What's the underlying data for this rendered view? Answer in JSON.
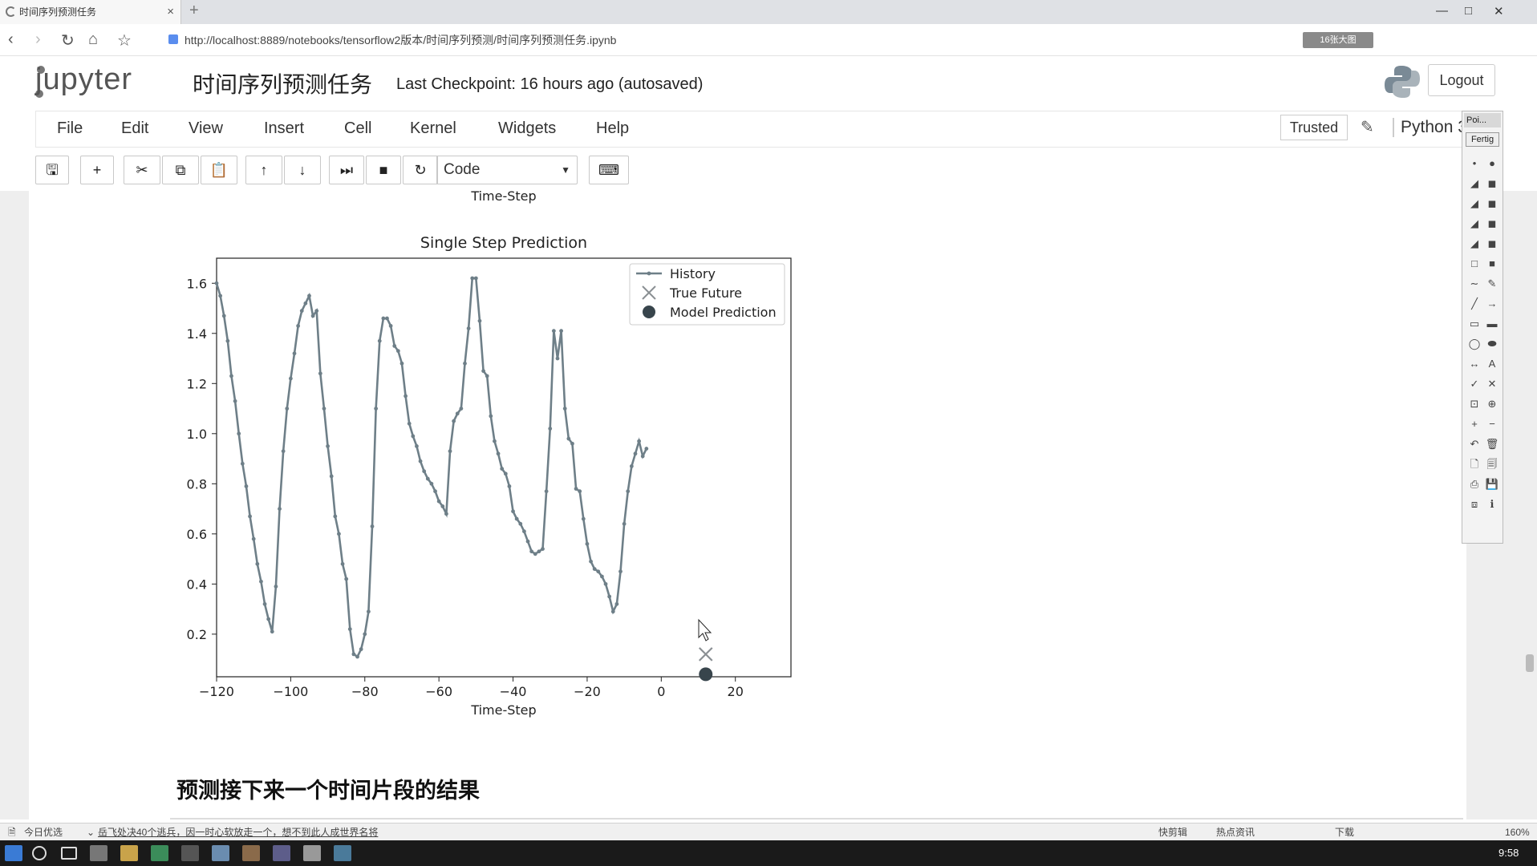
{
  "browser": {
    "tab_title": "时间序列预测任务",
    "tab_close": "×",
    "new_tab": "+",
    "url": "http://localhost:8889/notebooks/tensorflow2版本/时间序列预测/时间序列预测任务.ipynb",
    "badge": "16张大图",
    "nav": {
      "back": "‹",
      "forward": "›",
      "reload": "↻",
      "home": "⌂",
      "star": "☆"
    },
    "window": {
      "minimize": "—",
      "maximize": "□",
      "close": "✕"
    }
  },
  "header": {
    "logo": "jupyter",
    "notebook_name": "时间序列预测任务",
    "checkpoint": "Last Checkpoint: 16 hours ago (autosaved)",
    "logout": "Logout"
  },
  "menubar": {
    "items": [
      "File",
      "Edit",
      "View",
      "Insert",
      "Cell",
      "Kernel",
      "Widgets",
      "Help"
    ],
    "trusted": "Trusted",
    "kernel": "Python 3"
  },
  "toolbar": {
    "buttons": [
      {
        "name": "save",
        "glyph": "🖫"
      },
      {
        "name": "insert-cell",
        "glyph": "+"
      },
      {
        "name": "cut",
        "glyph": "✂"
      },
      {
        "name": "copy",
        "glyph": "⧉"
      },
      {
        "name": "paste",
        "glyph": "📋"
      },
      {
        "name": "move-up",
        "glyph": "↑"
      },
      {
        "name": "move-down",
        "glyph": "↓"
      },
      {
        "name": "run",
        "glyph": "⏭"
      },
      {
        "name": "interrupt",
        "glyph": "■"
      },
      {
        "name": "restart",
        "glyph": "↻"
      },
      {
        "name": "keyboard",
        "glyph": "⌨"
      }
    ],
    "cell_type": "Code"
  },
  "chart_data": {
    "type": "line",
    "title": "Single Step Prediction",
    "xlabel": "Time-Step",
    "prev_xlabel": "Time-Step",
    "xlim": [
      -120,
      35
    ],
    "ylim": [
      0.03,
      1.7
    ],
    "xticks": [
      -120,
      -100,
      -80,
      -60,
      -40,
      -20,
      0,
      20
    ],
    "xtick_labels": [
      "−120",
      "−100",
      "−80",
      "−60",
      "−40",
      "−20",
      "0",
      "20"
    ],
    "yticks": [
      0.2,
      0.4,
      0.6,
      0.8,
      1.0,
      1.2,
      1.4,
      1.6
    ],
    "ytick_labels": [
      "0.2",
      "0.4",
      "0.6",
      "0.8",
      "1.0",
      "1.2",
      "1.4",
      "1.6"
    ],
    "legend": {
      "position": "top-right",
      "entries": [
        "History",
        "True Future",
        "Model Prediction"
      ]
    },
    "colors": {
      "history": "#6e7f88",
      "true_future": "#8a8f93",
      "prediction": "#38454c"
    },
    "history": {
      "x_start": -120,
      "values": [
        1.6,
        1.55,
        1.47,
        1.37,
        1.23,
        1.13,
        1.0,
        0.88,
        0.79,
        0.67,
        0.58,
        0.48,
        0.41,
        0.32,
        0.26,
        0.21,
        0.39,
        0.7,
        0.93,
        1.1,
        1.22,
        1.32,
        1.43,
        1.49,
        1.52,
        1.55,
        1.47,
        1.49,
        1.24,
        1.1,
        0.95,
        0.83,
        0.67,
        0.6,
        0.48,
        0.42,
        0.22,
        0.12,
        0.11,
        0.14,
        0.2,
        0.29,
        0.63,
        1.1,
        1.37,
        1.46,
        1.46,
        1.43,
        1.35,
        1.33,
        1.28,
        1.15,
        1.04,
        0.99,
        0.95,
        0.89,
        0.85,
        0.82,
        0.8,
        0.77,
        0.73,
        0.71,
        0.68,
        0.93,
        1.05,
        1.08,
        1.1,
        1.28,
        1.42,
        1.62,
        1.62,
        1.45,
        1.25,
        1.23,
        1.07,
        0.97,
        0.92,
        0.86,
        0.84,
        0.79,
        0.69,
        0.66,
        0.64,
        0.61,
        0.57,
        0.53,
        0.52,
        0.53,
        0.54,
        0.77,
        1.02,
        1.41,
        1.3,
        1.41,
        1.1,
        0.98,
        0.96,
        0.78,
        0.77,
        0.66,
        0.56,
        0.49,
        0.46,
        0.45,
        0.43,
        0.4,
        0.35,
        0.29,
        0.32,
        0.45,
        0.64,
        0.77,
        0.87,
        0.92,
        0.97,
        0.91,
        0.94
      ]
    },
    "true_future": {
      "x": 12,
      "y": 0.12
    },
    "prediction": {
      "x": 12,
      "y": 0.04
    }
  },
  "markdown_heading": "预测接下来一个时间片段的结果",
  "palette": {
    "title": "Poi...",
    "button": "Fertig",
    "tools": [
      "•",
      "●",
      "◢",
      "◼",
      "◢",
      "◼",
      "◢",
      "◼",
      "◢",
      "◼",
      "□",
      "■",
      "∼",
      "✎",
      "╱",
      "→",
      "▭",
      "▬",
      "◯",
      "⬬",
      "↔",
      "A",
      "✓",
      "✕",
      "⊡",
      "⊕",
      "+",
      "−",
      "↶",
      "🗑",
      "🗋",
      "🗐",
      "⎙",
      "💾",
      "⧈",
      "ℹ"
    ]
  },
  "statusbar": {
    "left": "今日优选",
    "news": "岳飞处决40个逃兵，因一时心软放走一个，想不到此人成世界名将",
    "right_items": [
      "快剪辑",
      "热点资讯",
      "下载",
      "160%"
    ]
  },
  "taskbar": {
    "clock": "9:58"
  }
}
